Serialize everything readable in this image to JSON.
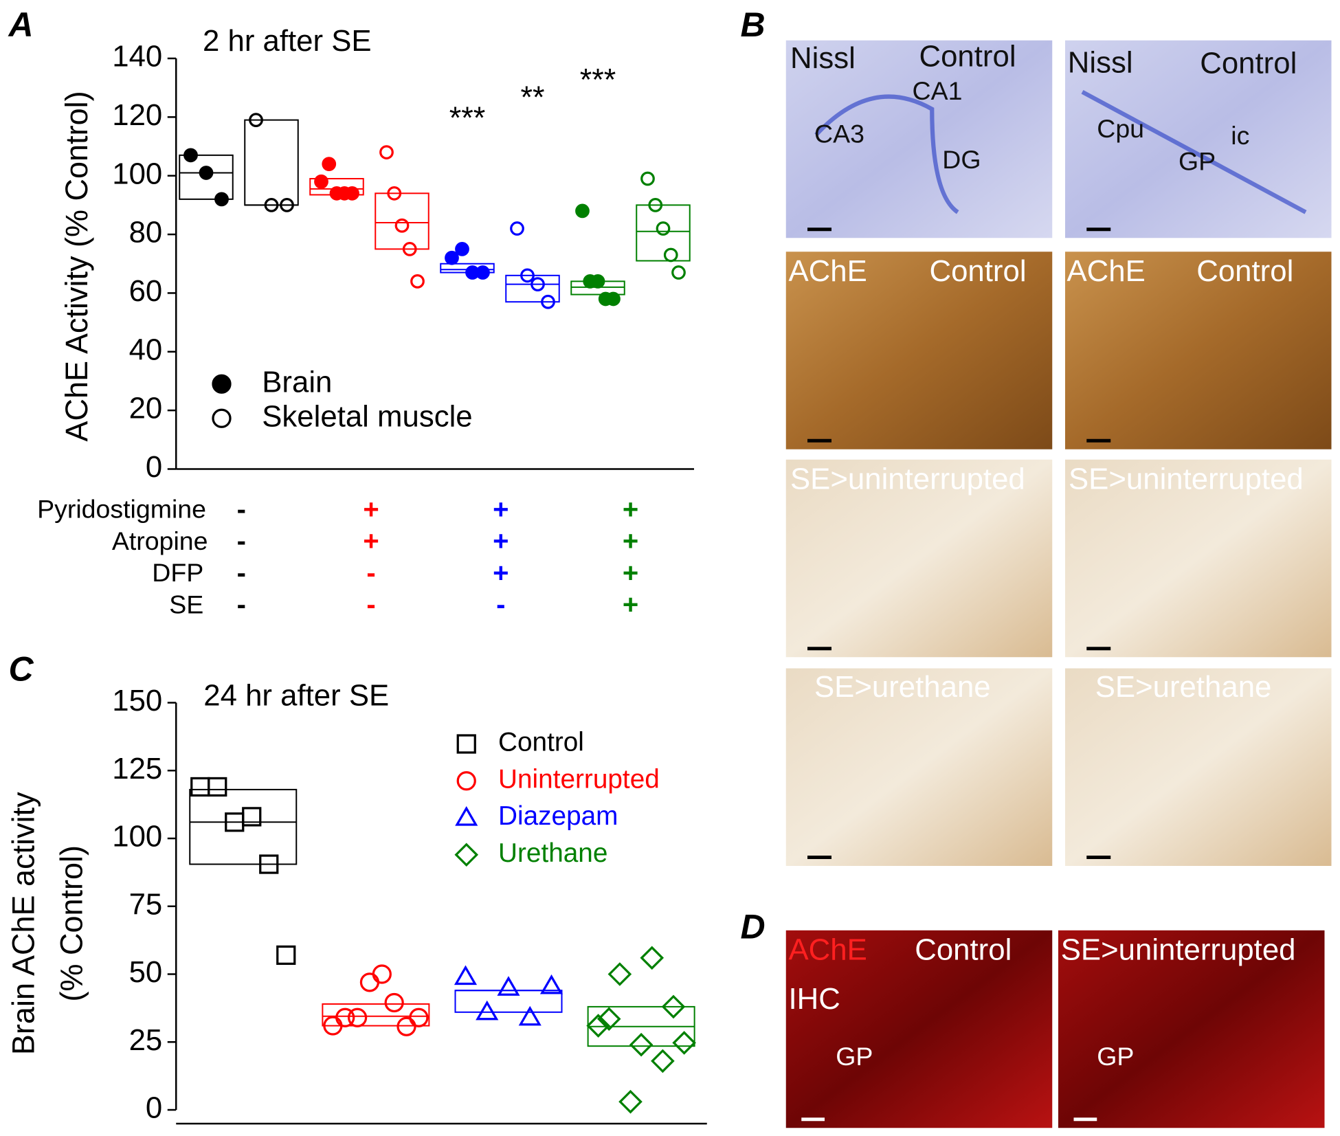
{
  "panel_labels": [
    "A",
    "B",
    "C",
    "D"
  ],
  "chart_data": [
    {
      "type": "scatter",
      "title": "2 hr after SE",
      "y_label": "AChE Activity (% Control)",
      "ylim": [
        0,
        140
      ],
      "yticks": [
        0,
        20,
        40,
        60,
        80,
        100,
        120,
        140
      ],
      "legend": [
        {
          "label": "Brain",
          "filled": true
        },
        {
          "label": "Skeletal muscle",
          "filled": false
        }
      ],
      "series": [
        {
          "color": "#000000",
          "filled": true,
          "values": [
            107,
            101,
            92
          ],
          "box": [
            92,
            101,
            107
          ]
        },
        {
          "color": "#000000",
          "filled": false,
          "values": [
            119,
            90,
            90
          ],
          "box": [
            90,
            90,
            119
          ]
        },
        {
          "color": "#ff0000",
          "filled": true,
          "values": [
            98,
            104,
            94,
            94,
            94
          ],
          "box": [
            93.5,
            95.5,
            99
          ]
        },
        {
          "color": "#ff0000",
          "filled": false,
          "values": [
            108,
            94,
            83,
            75,
            64
          ],
          "box": [
            75,
            84,
            94
          ]
        },
        {
          "color": "#0000ff",
          "filled": true,
          "values": [
            72,
            75,
            67,
            67
          ],
          "box": [
            67,
            68,
            70
          ],
          "annotation": "***"
        },
        {
          "color": "#0000ff",
          "filled": false,
          "values": [
            82,
            66,
            63,
            57
          ],
          "box": [
            57,
            63,
            66
          ],
          "annotation": "**"
        },
        {
          "color": "#008000",
          "filled": true,
          "values": [
            88,
            64,
            64,
            58,
            58
          ],
          "box": [
            59.5,
            62,
            64
          ],
          "annotation": "***"
        },
        {
          "color": "#008000",
          "filled": false,
          "values": [
            99,
            90,
            82,
            73,
            67
          ],
          "box": [
            71,
            81,
            90
          ]
        }
      ],
      "treatments": {
        "rows": [
          "Pyridostigmine",
          "Atropine",
          "DFP",
          "SE"
        ],
        "columns": [
          {
            "color": "#000000",
            "values": [
              "-",
              "-",
              "-",
              "-"
            ]
          },
          {
            "color": "#ff0000",
            "values": [
              "+",
              "+",
              "-",
              "-"
            ]
          },
          {
            "color": "#0000ff",
            "values": [
              "+",
              "+",
              "+",
              "-"
            ]
          },
          {
            "color": "#008000",
            "values": [
              "+",
              "+",
              "+",
              "+"
            ]
          }
        ]
      }
    },
    {
      "type": "scatter",
      "title": "24 hr after SE",
      "y_label": [
        "Brain AChE activity",
        "(% Control)"
      ],
      "ylim": [
        0,
        150
      ],
      "yticks": [
        0,
        25,
        50,
        75,
        100,
        125,
        150
      ],
      "series": [
        {
          "name": "Control",
          "color": "#000000",
          "marker": "square",
          "values": [
            119,
            119,
            106,
            108,
            90.5,
            57
          ],
          "box": [
            90.5,
            106,
            118
          ]
        },
        {
          "name": "Uninterrupted",
          "color": "#ff0000",
          "marker": "circle",
          "values": [
            31,
            34,
            34,
            47,
            50,
            39.5,
            30.7,
            34
          ],
          "box": [
            31,
            34.5,
            39
          ]
        },
        {
          "name": "Diazepam",
          "color": "#0000ff",
          "marker": "triangle",
          "values": [
            49,
            36,
            45,
            34,
            45.6
          ],
          "box": [
            36,
            44,
            44
          ]
        },
        {
          "name": "Urethane",
          "color": "#008000",
          "marker": "diamond",
          "values": [
            31,
            33.5,
            50,
            3,
            24,
            56,
            18,
            38,
            24.7
          ],
          "box": [
            23.5,
            30.7,
            38
          ]
        }
      ]
    }
  ],
  "panel_b": {
    "images": [
      {
        "labels": [
          "Nissl",
          "Control",
          "CA1",
          "CA3",
          "DG"
        ]
      },
      {
        "labels": [
          "Nissl",
          "Control",
          "Cpu",
          "ic",
          "GP"
        ]
      },
      {
        "labels": [
          "AChE",
          "Control"
        ]
      },
      {
        "labels": [
          "AChE",
          "Control"
        ]
      },
      {
        "labels": [
          "SE>uninterrupted"
        ]
      },
      {
        "labels": [
          "SE>uninterrupted"
        ]
      },
      {
        "labels": [
          "SE>urethane"
        ]
      },
      {
        "labels": [
          "SE>urethane"
        ]
      }
    ]
  },
  "panel_d": {
    "images": [
      {
        "labels": [
          "AChE",
          "Control",
          "IHC",
          "GP"
        ]
      },
      {
        "labels": [
          "SE>uninterrupted",
          "GP"
        ]
      }
    ]
  }
}
